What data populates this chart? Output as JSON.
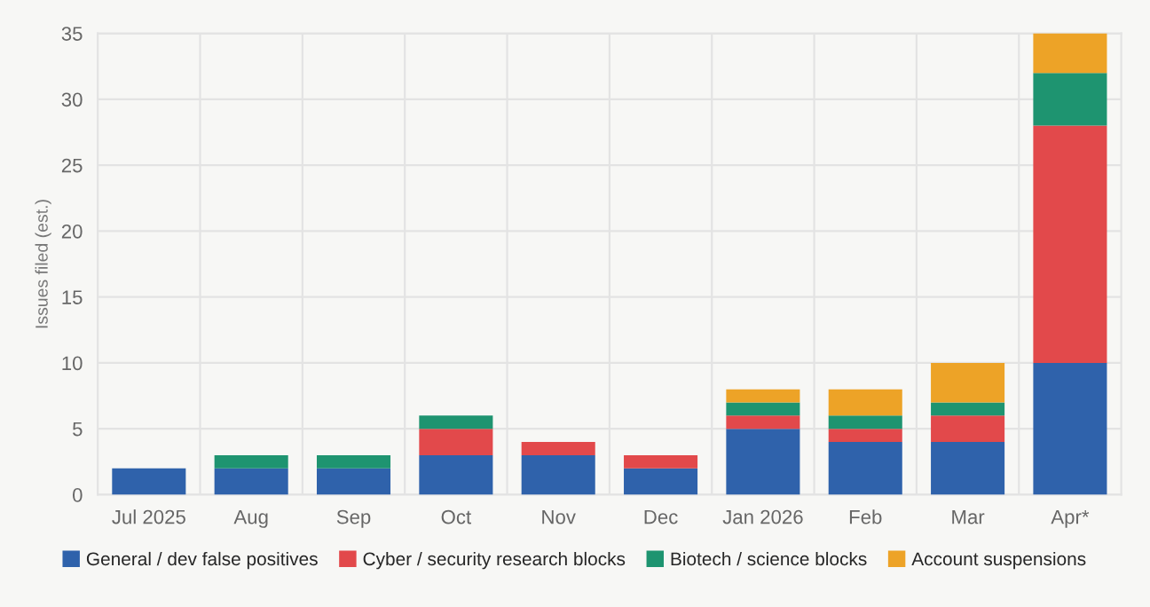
{
  "chart_data": {
    "type": "bar",
    "stacked": true,
    "ylabel": "Issues filed (est.)",
    "categories": [
      "Jul 2025",
      "Aug",
      "Sep",
      "Oct",
      "Nov",
      "Dec",
      "Jan 2026",
      "Feb",
      "Mar",
      "Apr*"
    ],
    "series": [
      {
        "name": "General / dev false positives",
        "color": "#2f62ab",
        "values": [
          2,
          2,
          2,
          3,
          3,
          2,
          5,
          4,
          4,
          10
        ]
      },
      {
        "name": "Cyber / security research blocks",
        "color": "#e2494b",
        "values": [
          0,
          0,
          0,
          2,
          1,
          1,
          1,
          1,
          2,
          18
        ]
      },
      {
        "name": "Biotech / science blocks",
        "color": "#1e9470",
        "values": [
          0,
          1,
          1,
          1,
          0,
          0,
          1,
          1,
          1,
          4
        ]
      },
      {
        "name": "Account suspensions",
        "color": "#eda327",
        "values": [
          0,
          0,
          0,
          0,
          0,
          0,
          1,
          2,
          3,
          3
        ]
      }
    ],
    "ylim": [
      0,
      35
    ],
    "yticks": [
      0,
      5,
      10,
      15,
      20,
      25,
      30,
      35
    ],
    "grid": true,
    "legend": "bottom"
  }
}
